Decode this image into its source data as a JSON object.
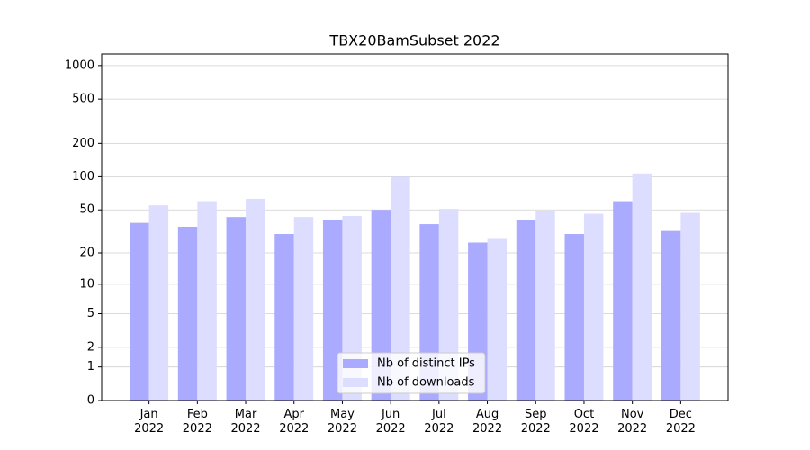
{
  "chart_data": {
    "type": "bar",
    "title": "TBX20BamSubset 2022",
    "categories": [
      "Jan\n2022",
      "Feb\n2022",
      "Mar\n2022",
      "Apr\n2022",
      "May\n2022",
      "Jun\n2022",
      "Jul\n2022",
      "Aug\n2022",
      "Sep\n2022",
      "Oct\n2022",
      "Nov\n2022",
      "Dec\n2022"
    ],
    "series": [
      {
        "name": "Nb of distinct IPs",
        "color": "#aaaaff",
        "values": [
          38,
          35,
          43,
          30,
          40,
          50,
          37,
          25,
          40,
          30,
          60,
          32
        ]
      },
      {
        "name": "Nb of downloads",
        "color": "#ddddff",
        "values": [
          55,
          60,
          63,
          43,
          44,
          100,
          51,
          27,
          49,
          46,
          107,
          47
        ]
      }
    ],
    "yscale": "log1p",
    "ylim": [
      0,
      1270
    ],
    "yticks": [
      0,
      1,
      2,
      5,
      10,
      20,
      50,
      100,
      200,
      500,
      1000
    ],
    "grid": true,
    "legend": "lower center"
  }
}
